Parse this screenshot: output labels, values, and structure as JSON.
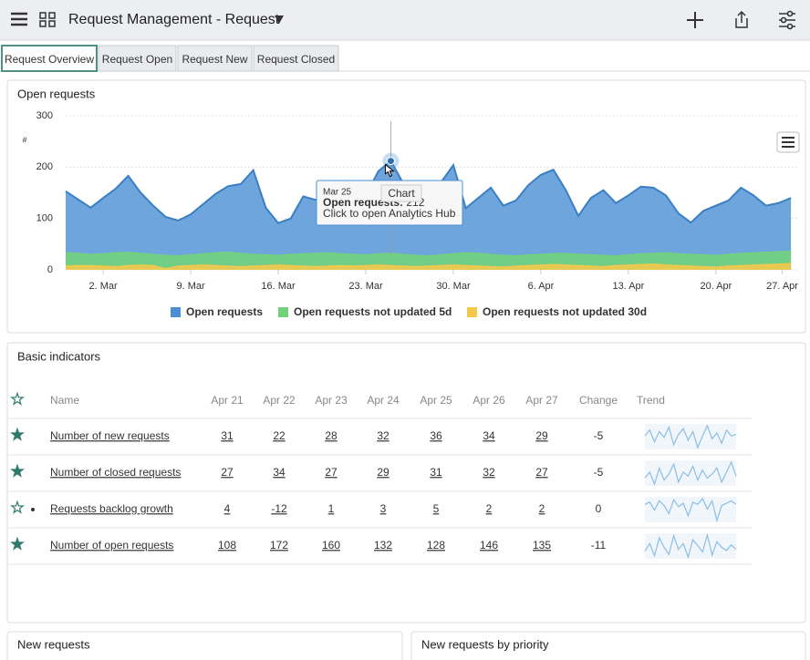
{
  "header": {
    "title": "Request Management - Request"
  },
  "tabs": [
    "Request Overview",
    "Request Open",
    "Request New",
    "Request Closed"
  ],
  "chart_data": {
    "type": "area",
    "title": "Open requests",
    "y_label": "#",
    "x": [
      0,
      1,
      2,
      3,
      4,
      5,
      6,
      7,
      8,
      9,
      10,
      11,
      12,
      13,
      14,
      15,
      16,
      17,
      18,
      19,
      20,
      21,
      22,
      23,
      24,
      25,
      26,
      27,
      28,
      29,
      30,
      31,
      32,
      33,
      34,
      35,
      36,
      37,
      38,
      39,
      40,
      41,
      42,
      43,
      44,
      45,
      46,
      47,
      48,
      49,
      50,
      51,
      52,
      53,
      54,
      55,
      56,
      57,
      58
    ],
    "xlim": [
      0,
      58.5
    ],
    "xticks": [
      {
        "value": 3,
        "label": "2. Mar"
      },
      {
        "value": 10,
        "label": "9. Mar"
      },
      {
        "value": 17,
        "label": "16. Mar"
      },
      {
        "value": 24,
        "label": "23. Mar"
      },
      {
        "value": 31,
        "label": "30. Mar"
      },
      {
        "value": 38,
        "label": "6. Apr"
      },
      {
        "value": 45,
        "label": "13. Apr"
      },
      {
        "value": 52,
        "label": "20. Apr"
      },
      {
        "value": 57.3,
        "label": "27. Apr"
      }
    ],
    "ylim": [
      0,
      300
    ],
    "yticks": [
      0,
      100,
      200,
      300
    ],
    "grid": true,
    "series": [
      {
        "name": "Open requests",
        "color": "#4a8fd4",
        "values": [
          153,
          137,
          121,
          140,
          158,
          183,
          150,
          125,
          103,
          96,
          108,
          128,
          148,
          163,
          167,
          194,
          121,
          91,
          100,
          143,
          136,
          144,
          155,
          158,
          144,
          192,
          212,
          168,
          110,
          95,
          170,
          204,
          120,
          140,
          160,
          125,
          135,
          165,
          185,
          195,
          155,
          105,
          140,
          155,
          130,
          145,
          162,
          160,
          145,
          110,
          92,
          115,
          125,
          135,
          160,
          145,
          125,
          130,
          140
        ]
      },
      {
        "name": "Open requests not updated 5d",
        "color": "#72d27c",
        "values": [
          33,
          32,
          30,
          31,
          33,
          34,
          32,
          30,
          28,
          27,
          29,
          31,
          33,
          34,
          32,
          30,
          29,
          28,
          30,
          31,
          32,
          33,
          31,
          30,
          29,
          31,
          32,
          30,
          28,
          27,
          29,
          31,
          33,
          32,
          30,
          28,
          27,
          29,
          30,
          31,
          32,
          30,
          29,
          28,
          27,
          29,
          31,
          32,
          33,
          31,
          30,
          29,
          28,
          30,
          32,
          33,
          34,
          35,
          36
        ]
      },
      {
        "name": "Open requests not updated 30d",
        "color": "#f2c94c",
        "values": [
          7,
          8,
          8,
          7,
          6,
          8,
          9,
          8,
          2,
          7,
          8,
          9,
          8,
          7,
          6,
          7,
          8,
          9,
          8,
          7,
          6,
          7,
          8,
          7,
          8,
          9,
          8,
          7,
          6,
          7,
          8,
          9,
          8,
          7,
          6,
          5,
          7,
          8,
          9,
          10,
          9,
          8,
          7,
          6,
          8,
          9,
          10,
          11,
          9,
          8,
          7,
          6,
          5,
          7,
          8,
          9,
          10,
          11,
          12
        ]
      }
    ],
    "tooltip": {
      "date": "Mar 25",
      "label": "Open requests: ",
      "value": 212,
      "hint": "Click to open Analytics Hub",
      "pointer": "Chart"
    }
  },
  "indicators": {
    "title": "Basic indicators",
    "columns": [
      "Name",
      "Apr 21",
      "Apr 22",
      "Apr 23",
      "Apr 24",
      "Apr 25",
      "Apr 26",
      "Apr 27",
      "Change",
      "Trend"
    ],
    "rows": [
      {
        "favorite": true,
        "name": "Number of new requests",
        "values": [
          31,
          22,
          28,
          32,
          36,
          34,
          29
        ],
        "change": -5,
        "trend": [
          30,
          34,
          26,
          33,
          29,
          36,
          24,
          31,
          35,
          27,
          33,
          22,
          30,
          37,
          28,
          32,
          25,
          34,
          30,
          31
        ]
      },
      {
        "favorite": true,
        "name": "Number of closed requests",
        "values": [
          27,
          34,
          27,
          29,
          31,
          32,
          27
        ],
        "change": -5,
        "trend": [
          28,
          31,
          25,
          33,
          27,
          30,
          35,
          26,
          31,
          29,
          34,
          27,
          32,
          28,
          30,
          33,
          26,
          31,
          36,
          29
        ]
      },
      {
        "favorite": false,
        "name": "Requests backlog growth",
        "values": [
          4,
          -12,
          1,
          3,
          5,
          2,
          2
        ],
        "change": 0,
        "trend": [
          2,
          4,
          -3,
          5,
          1,
          -6,
          6,
          0,
          3,
          -8,
          4,
          2,
          7,
          -2,
          5,
          -12,
          1,
          3,
          5,
          2
        ]
      },
      {
        "favorite": true,
        "name": "Number of open requests",
        "values": [
          108,
          172,
          160,
          132,
          128,
          146,
          135
        ],
        "change": -11,
        "trend": [
          130,
          150,
          118,
          165,
          140,
          122,
          170,
          135,
          150,
          115,
          160,
          145,
          128,
          172,
          120,
          155,
          140,
          132,
          146,
          135
        ]
      }
    ]
  },
  "panels": [
    "New requests",
    "New requests by priority"
  ]
}
